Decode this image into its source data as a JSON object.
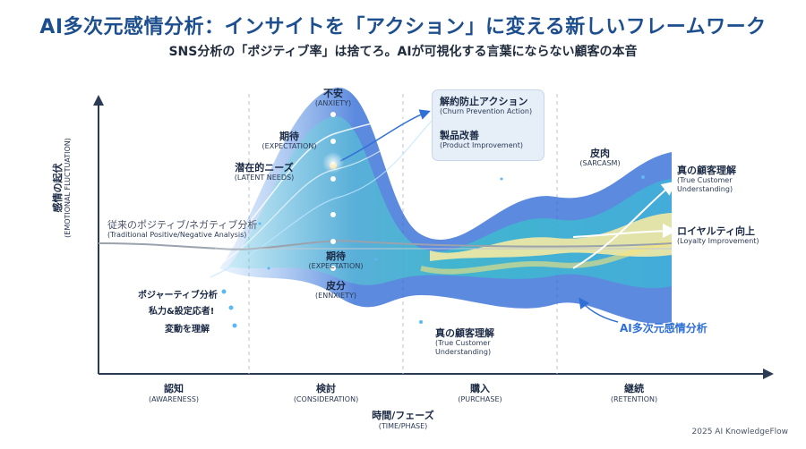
{
  "title": "AI多次元感情分析：インサイトを「アクション」に変える新しいフレームワーク",
  "subtitle": "SNS分析の「ポジティブ率」は捨てろ。AIが可視化する言葉にならない顧客の本音",
  "y_axis": {
    "label": "感情の起伏",
    "sub": "(EMOTIONAL FLUCTUATION)"
  },
  "x_axis": {
    "label": "時間/フェーズ",
    "sub": "(TIME/PHASE)"
  },
  "phases": [
    {
      "label": "認知",
      "sub": "(AWARENESS)"
    },
    {
      "label": "検討",
      "sub": "(CONSIDERATION)"
    },
    {
      "label": "購入",
      "sub": "(PURCHASE)"
    },
    {
      "label": "継続",
      "sub": "(RETENTION)"
    }
  ],
  "traditional": {
    "label": "従来のポジティブ/ネガティブ分析",
    "sub": "(Traditional Positive/Negative Analysis)"
  },
  "peak_labels": [
    {
      "label": "不安",
      "sub": "(ANXIETY)"
    },
    {
      "label": "期待",
      "sub": "(EXPECTATION)"
    },
    {
      "label": "潜在的ニーズ",
      "sub": "(LATENT NEEDS)"
    }
  ],
  "lower_labels": [
    {
      "label": "期待",
      "sub": "(EXPECTATION)"
    },
    {
      "label": "皮分",
      "sub": "(ENNXIETY)"
    }
  ],
  "left_labels": [
    "ポジャーティブ分析",
    "私力&設定応者!",
    "変動を理解"
  ],
  "actions": [
    {
      "label": "解約防止アクション",
      "sub": "(Churn Prevention Action)"
    },
    {
      "label": "製品改善",
      "sub": "(Product Improvement)"
    }
  ],
  "purchase_label": {
    "label": "真の顧客理解",
    "sub1": "(True Customer",
    "sub2": "Understanding)"
  },
  "sarcasm": {
    "label": "皮肉",
    "sub": "(SARCASM)"
  },
  "right_labels": [
    {
      "label": "真の顧客理解",
      "sub1": "(True Customer",
      "sub2": "Understanding)"
    },
    {
      "label": "ロイヤルティ向上",
      "sub1": "(Loyalty Improvement)",
      "sub2": ""
    }
  ],
  "ai_label": "AI多次元感情分析",
  "footer": "2025 AI KnowledgeFlow",
  "colors": {
    "title": "#1d4f8f",
    "accent": "#2f6fd6",
    "teal": "#37c6c9",
    "yellow": "#f4e9a3",
    "gray": "#9aa3ad"
  }
}
